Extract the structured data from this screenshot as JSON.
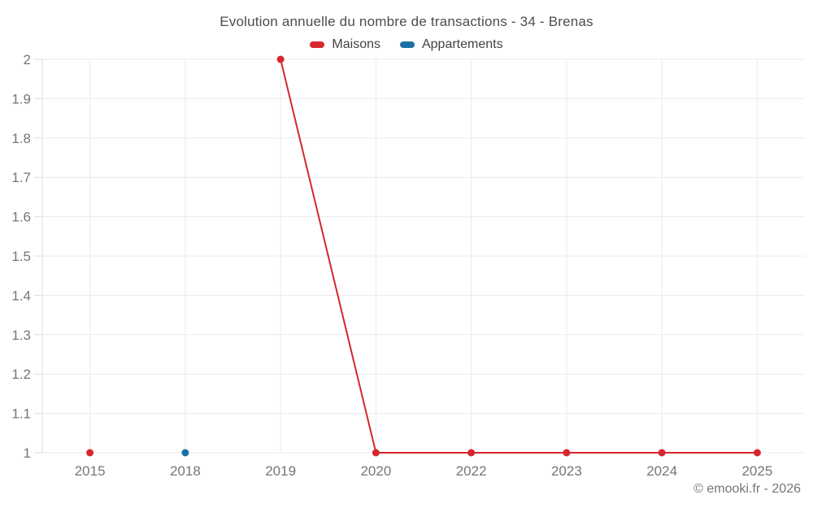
{
  "footer": {
    "copyright": "© emooki.fr - 2026"
  },
  "chart_data": {
    "type": "line",
    "title": "Evolution annuelle du nombre de transactions - 34 - Brenas",
    "categories": [
      "2015",
      "2018",
      "2019",
      "2020",
      "2022",
      "2023",
      "2024",
      "2025"
    ],
    "series": [
      {
        "name": "Maisons",
        "color": "#d7262c",
        "values": [
          1,
          null,
          2,
          1,
          1,
          1,
          1,
          1
        ]
      },
      {
        "name": "Appartements",
        "color": "#1c70a8",
        "values": [
          null,
          1,
          null,
          null,
          null,
          null,
          null,
          null
        ]
      }
    ],
    "xlabel": "",
    "ylabel": "",
    "ylim": [
      1,
      2
    ],
    "ytick_step": 0.1,
    "ytick_labels": [
      "1",
      "1.1",
      "1.2",
      "1.3",
      "1.4",
      "1.5",
      "1.6",
      "1.7",
      "1.8",
      "1.9",
      "2"
    ],
    "grid": true,
    "legend_position": "top",
    "connect_nulls": false
  }
}
